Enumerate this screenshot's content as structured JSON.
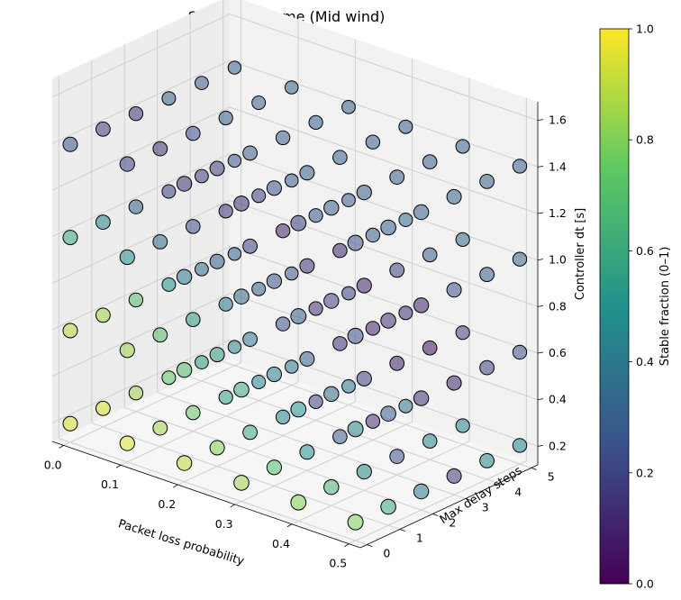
{
  "chart_data": {
    "type": "scatter",
    "title": "Stability volume (Mid wind)",
    "xlabel": "Packet loss probability",
    "ylabel": "Max delay steps",
    "zlabel": "Controller dt [s]",
    "colorbar_label": "Stable fraction (0–1)",
    "colormap": "viridis",
    "colormap_colors": [
      "#440154",
      "#3b528b",
      "#21918c",
      "#5ec962",
      "#fde725"
    ],
    "point_alpha": 0.55,
    "x_ticks": [
      "0.0",
      "0.1",
      "0.2",
      "0.3",
      "0.4",
      "0.5"
    ],
    "y_ticks": [
      "0",
      "1",
      "2",
      "3",
      "4",
      "5"
    ],
    "z_ticks": [
      "0.2",
      "0.4",
      "0.6",
      "0.8",
      "1.0",
      "1.2",
      "1.4",
      "1.6"
    ],
    "colorbar_ticks": [
      "0.0",
      "0.2",
      "0.4",
      "0.6",
      "0.8",
      "1.0"
    ],
    "xlim": [
      -0.02,
      0.52
    ],
    "ylim": [
      -0.2,
      5.2
    ],
    "zlim": [
      0.12,
      1.68
    ],
    "x_values": [
      0.0,
      0.1,
      0.2,
      0.3,
      0.4,
      0.5
    ],
    "y_values": [
      0,
      1,
      2,
      3,
      4,
      5
    ],
    "z_values": [
      0.2,
      0.6,
      1.0,
      1.4
    ],
    "note_axes_order": "stable[zIndex][xIndex][yIndex]",
    "stable": [
      [
        [
          0.95,
          0.95,
          0.85,
          0.75,
          0.55,
          0.45
        ],
        [
          0.95,
          0.85,
          0.75,
          0.55,
          0.45,
          0.4
        ],
        [
          0.9,
          0.8,
          0.6,
          0.45,
          0.2,
          0.4
        ],
        [
          0.85,
          0.7,
          0.5,
          0.3,
          0.15,
          0.4
        ],
        [
          0.8,
          0.65,
          0.45,
          0.25,
          0.45,
          0.45
        ],
        [
          0.8,
          0.6,
          0.4,
          0.15,
          0.45,
          0.45
        ]
      ],
      [
        [
          0.9,
          0.85,
          0.7,
          0.5,
          0.35,
          0.3
        ],
        [
          0.85,
          0.7,
          0.55,
          0.4,
          0.3,
          0.25
        ],
        [
          0.7,
          0.55,
          0.4,
          0.25,
          0.15,
          0.2
        ],
        [
          0.6,
          0.45,
          0.3,
          0.15,
          0.1,
          0.15
        ],
        [
          0.5,
          0.35,
          0.2,
          0.1,
          0.05,
          0.2
        ],
        [
          0.45,
          0.3,
          0.15,
          0.1,
          0.2,
          0.25
        ]
      ],
      [
        [
          0.6,
          0.45,
          0.3,
          0.2,
          0.2,
          0.25
        ],
        [
          0.5,
          0.35,
          0.25,
          0.15,
          0.2,
          0.3
        ],
        [
          0.4,
          0.3,
          0.2,
          0.1,
          0.25,
          0.3
        ],
        [
          0.35,
          0.25,
          0.15,
          0.1,
          0.3,
          0.35
        ],
        [
          0.3,
          0.2,
          0.1,
          0.2,
          0.3,
          0.35
        ],
        [
          0.25,
          0.15,
          0.1,
          0.25,
          0.3,
          0.35
        ]
      ],
      [
        [
          0.25,
          0.2,
          0.15,
          0.3,
          0.3,
          0.3
        ],
        [
          0.2,
          0.15,
          0.25,
          0.3,
          0.3,
          0.3
        ],
        [
          0.15,
          0.2,
          0.3,
          0.3,
          0.3,
          0.3
        ],
        [
          0.15,
          0.25,
          0.3,
          0.3,
          0.3,
          0.3
        ],
        [
          0.2,
          0.3,
          0.3,
          0.3,
          0.3,
          0.3
        ],
        [
          0.25,
          0.3,
          0.3,
          0.3,
          0.3,
          0.3
        ]
      ]
    ]
  }
}
